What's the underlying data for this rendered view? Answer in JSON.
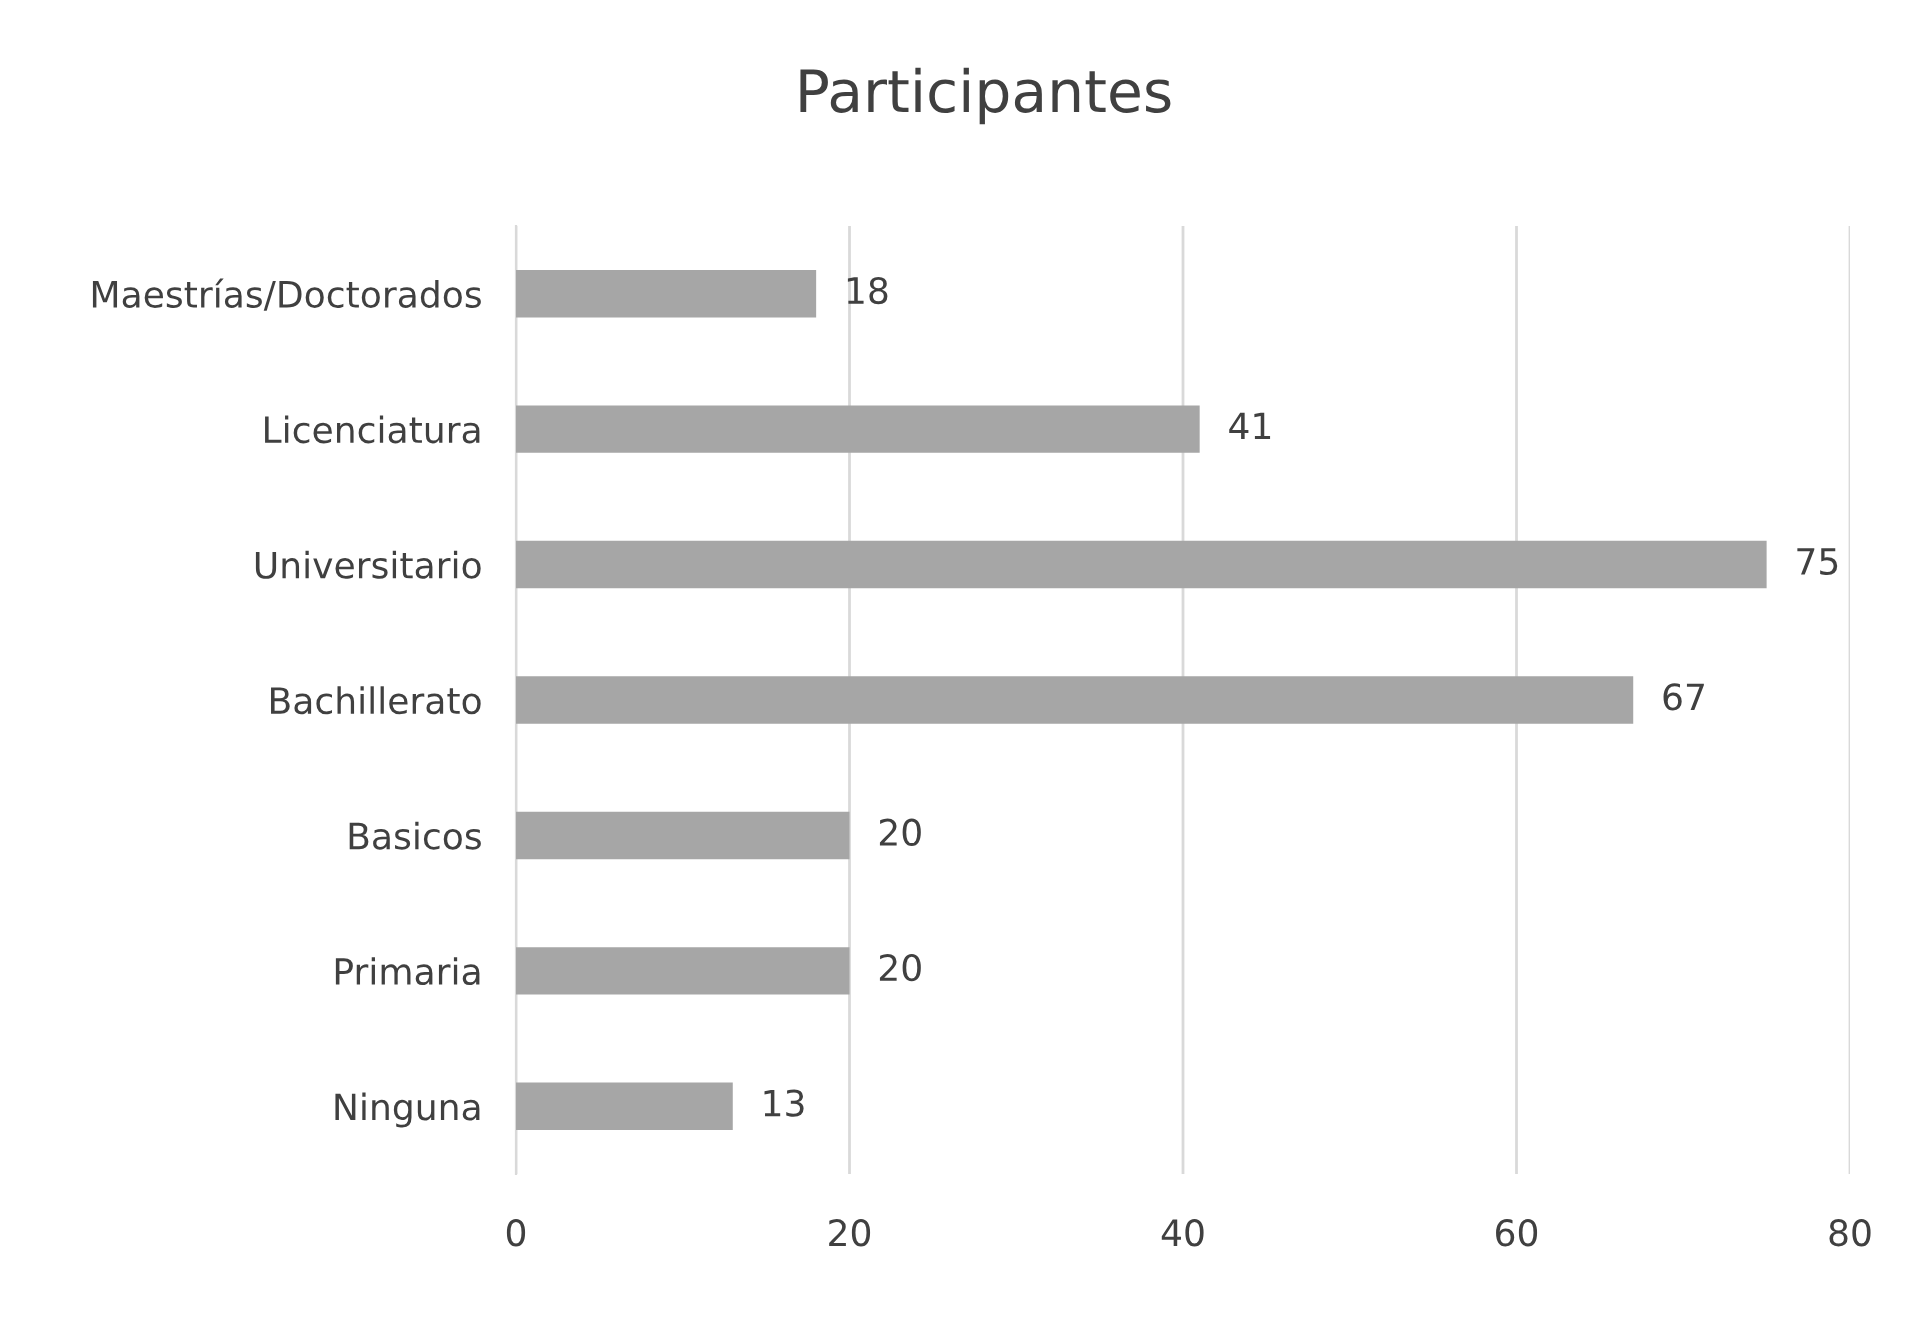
{
  "chart_data": {
    "type": "bar",
    "orientation": "horizontal",
    "title": "Participantes",
    "categories": [
      "Maestrías/Doctorados",
      "Licenciatura",
      "Universitario",
      "Bachillerato",
      "Basicos",
      "Primaria",
      "Ninguna"
    ],
    "values": [
      18,
      41,
      75,
      67,
      20,
      20,
      13
    ],
    "color": "#a6a6a6",
    "xlim": [
      0,
      80
    ],
    "xticks": [
      0,
      20,
      40,
      60,
      80
    ],
    "grid": "x",
    "data_labels": true
  }
}
